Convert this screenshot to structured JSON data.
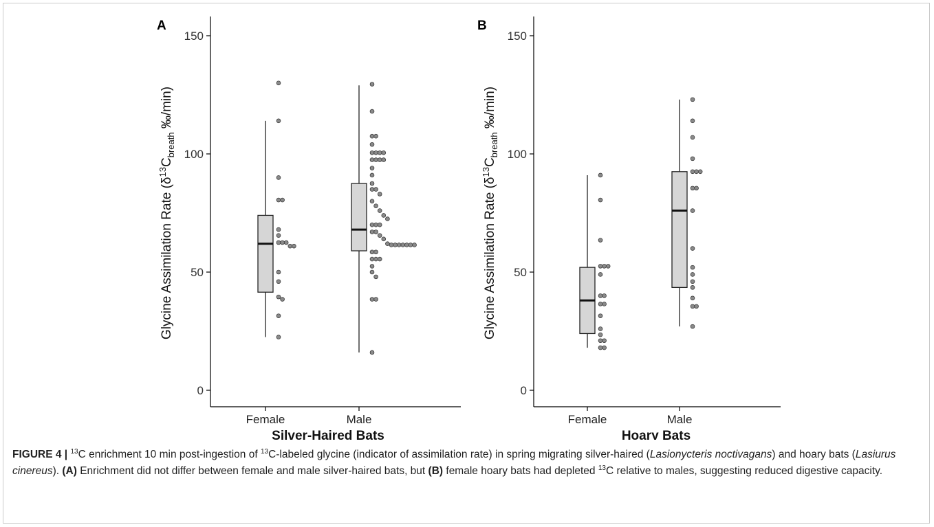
{
  "chart_data": [
    {
      "type": "boxplot",
      "panel_label": "A",
      "ylabel": "Glycine Assimilation Rate (δ13Cbreath ‰/min)",
      "ylim": [
        0,
        150
      ],
      "yticks": [
        0,
        50,
        100,
        150
      ],
      "xlabel": "Silver-Haired Bats",
      "categories": [
        "Female",
        "Male"
      ],
      "boxes": [
        {
          "category": "Female",
          "whisker_low": 22.5,
          "q1": 41.5,
          "median": 62,
          "q3": 74,
          "whisker_high": 114
        },
        {
          "category": "Male",
          "whisker_low": 16,
          "q1": 59,
          "median": 68,
          "q3": 87.5,
          "whisker_high": 129
        }
      ],
      "points": [
        {
          "category": "Female",
          "values": [
            130,
            114,
            90,
            80.5,
            80.5,
            68,
            65.5,
            62.5,
            62.5,
            62.5,
            61,
            61,
            50,
            46,
            39.5,
            38.5,
            31.5,
            22.5
          ]
        },
        {
          "category": "Male",
          "values": [
            129.5,
            118,
            107.5,
            107.5,
            104,
            100.5,
            100.5,
            100.5,
            100.5,
            97.5,
            97.5,
            97.5,
            97.5,
            94,
            91,
            87.5,
            85,
            85,
            83,
            80,
            78,
            76,
            74,
            72.5,
            70,
            70,
            70,
            67,
            67,
            65.5,
            64,
            62,
            61.5,
            61.5,
            61.5,
            61.5,
            61.5,
            61.5,
            61.5,
            58.5,
            58.5,
            55.5,
            55.5,
            55.5,
            52.5,
            50,
            48,
            38.5,
            38.5,
            16
          ]
        }
      ]
    },
    {
      "type": "boxplot",
      "panel_label": "B",
      "ylabel": "Glycine Assimilation Rate (δ13Cbreath ‰/min)",
      "ylim": [
        0,
        150
      ],
      "yticks": [
        0,
        50,
        100,
        150
      ],
      "xlabel": "Hoary Bats",
      "categories": [
        "Female",
        "Male"
      ],
      "boxes": [
        {
          "category": "Female",
          "whisker_low": 18,
          "q1": 24,
          "median": 38,
          "q3": 52,
          "whisker_high": 91
        },
        {
          "category": "Male",
          "whisker_low": 27,
          "q1": 43.5,
          "median": 76,
          "q3": 92.5,
          "whisker_high": 123
        }
      ],
      "points": [
        {
          "category": "Female",
          "values": [
            91,
            80.5,
            63.5,
            52.5,
            52.5,
            52.5,
            49,
            40,
            40,
            36.5,
            36.5,
            31.5,
            26,
            23.5,
            21,
            21,
            18,
            18
          ]
        },
        {
          "category": "Male",
          "values": [
            123,
            114,
            107,
            98,
            92.5,
            92.5,
            92.5,
            85.5,
            85.5,
            76,
            60,
            52,
            49,
            46,
            43.5,
            39,
            35.5,
            35.5,
            27
          ]
        }
      ]
    }
  ],
  "caption": {
    "figure_label": "FIGURE 4 |",
    "iso_sup": "13",
    "p1": "C enrichment 10 min post-ingestion of ",
    "p2": "C-labeled glycine (indicator of assimilation rate) in spring migrating silver-haired (",
    "species1": "Lasionycteris noctivagans",
    "p3": ") and hoary bats (",
    "species2": "Lasiurus cinereus",
    "p4": "). ",
    "refA": "(A)",
    "p5": " Enrichment did not differ between female and male silver-haired bats, but ",
    "refB": "(B)",
    "p6": " female hoary bats had depleted ",
    "p7": "C relative to males, suggesting reduced digestive capacity."
  },
  "colors": {
    "box_fill": "#d6d6d6",
    "point_fill": "#8a8a8a",
    "axis": "#000000"
  }
}
